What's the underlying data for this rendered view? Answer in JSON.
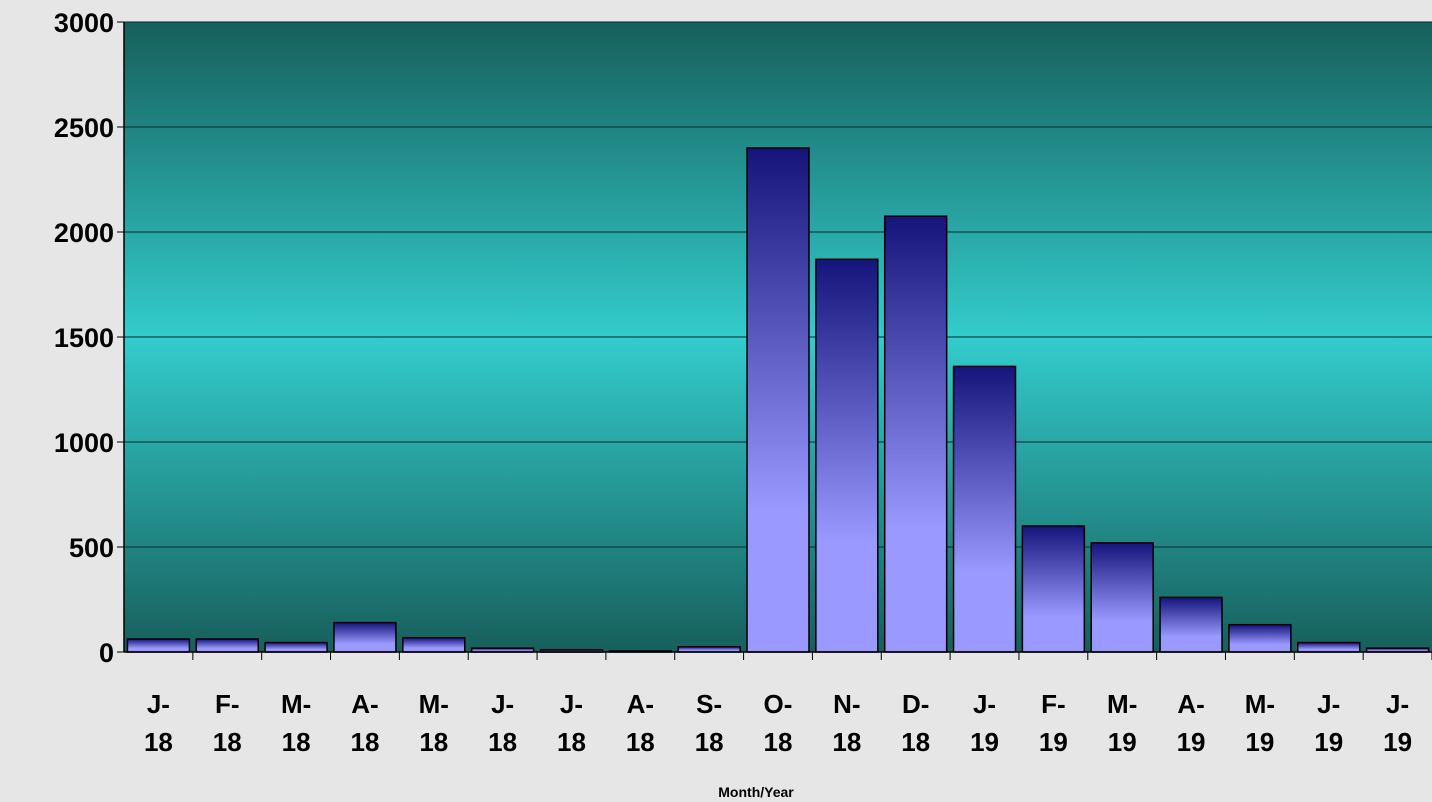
{
  "chart_data": {
    "type": "bar",
    "title": "",
    "xlabel": "Month/Year",
    "ylabel": "",
    "ylim": [
      0,
      3000
    ],
    "yticks": [
      0,
      500,
      1000,
      1500,
      2000,
      2500,
      3000
    ],
    "grid": true,
    "categories": [
      [
        "J-",
        "18"
      ],
      [
        "F-",
        "18"
      ],
      [
        "M-",
        "18"
      ],
      [
        "A-",
        "18"
      ],
      [
        "M-",
        "18"
      ],
      [
        "J-",
        "18"
      ],
      [
        "J-",
        "18"
      ],
      [
        "A-",
        "18"
      ],
      [
        "S-",
        "18"
      ],
      [
        "O-",
        "18"
      ],
      [
        "N-",
        "18"
      ],
      [
        "D-",
        "18"
      ],
      [
        "J-",
        "19"
      ],
      [
        "F-",
        "19"
      ],
      [
        "M-",
        "19"
      ],
      [
        "A-",
        "19"
      ],
      [
        "M-",
        "19"
      ],
      [
        "J-",
        "19"
      ],
      [
        "J-",
        "19"
      ]
    ],
    "values": [
      62,
      62,
      45,
      140,
      68,
      18,
      10,
      5,
      25,
      2400,
      1870,
      2075,
      1360,
      600,
      520,
      260,
      130,
      45,
      18
    ],
    "colors": {
      "plot_top": "#175f5c",
      "plot_mid": "#33cccc",
      "bar_top": "#14147a",
      "bar_bottom": "#9999ff",
      "gridline": "#0a2a2a"
    }
  }
}
